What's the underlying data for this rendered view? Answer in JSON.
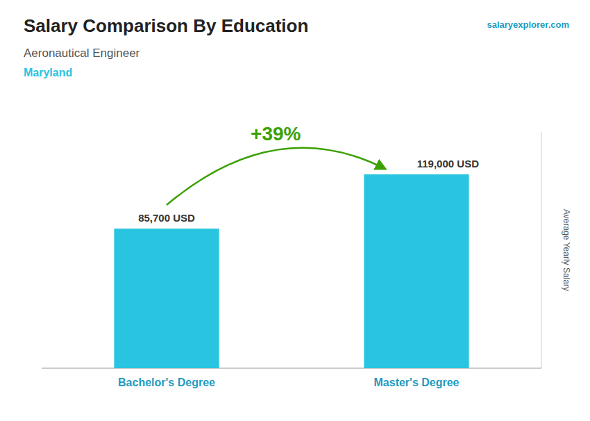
{
  "chart_data": {
    "type": "bar",
    "title": "Salary Comparison By Education",
    "subtitle": "Aeronautical Engineer",
    "annotations": [
      "Maryland",
      "+39%",
      "salaryexplorer.com"
    ],
    "categories": [
      "Bachelor's Degree",
      "Master's Degree"
    ],
    "values": [
      85700,
      119000
    ],
    "value_labels": [
      "85,700 USD",
      "119,000 USD"
    ],
    "data_labels": true,
    "color": "#29C4E0",
    "ylabel": "Average Yearly Salary",
    "ylim": [
      0,
      145000
    ],
    "tick_labels": false
  }
}
